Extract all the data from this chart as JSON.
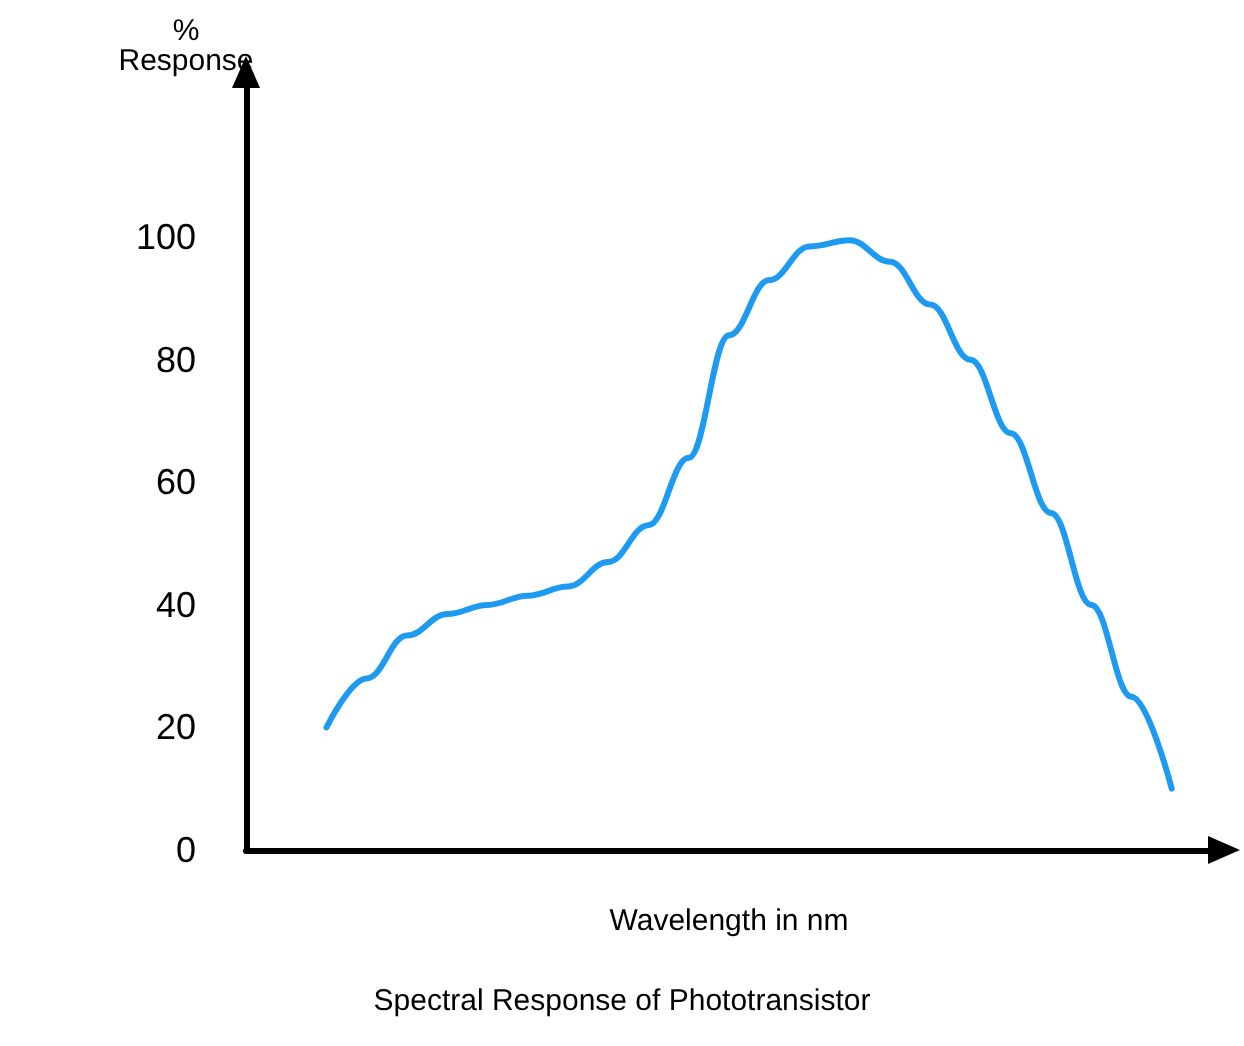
{
  "chart_data": {
    "type": "line",
    "title": "Spectral Response of Phototransistor",
    "xlabel": "Wavelength in nm",
    "ylabel": "%\nResponse",
    "categories": [
      null,
      null,
      null,
      null,
      null,
      null,
      null,
      null,
      null,
      null,
      null,
      null,
      null,
      null,
      null,
      null,
      null,
      null,
      null,
      null,
      null,
      null,
      null,
      null,
      null
    ],
    "series": [
      {
        "color": "#1e9bf0",
        "values": [
          null,
          null,
          20,
          28,
          35,
          38.5,
          40,
          41.5,
          43,
          47,
          53,
          64,
          84,
          93,
          98.5,
          99.5,
          96,
          89,
          80,
          68,
          55,
          40,
          25,
          10,
          null
        ]
      }
    ],
    "ylim": [
      0,
      125
    ],
    "yticks": [
      0,
      20,
      40,
      60,
      80,
      100
    ],
    "grid": false,
    "marker": "none",
    "line_style": "solid",
    "tick_labels": "y"
  }
}
